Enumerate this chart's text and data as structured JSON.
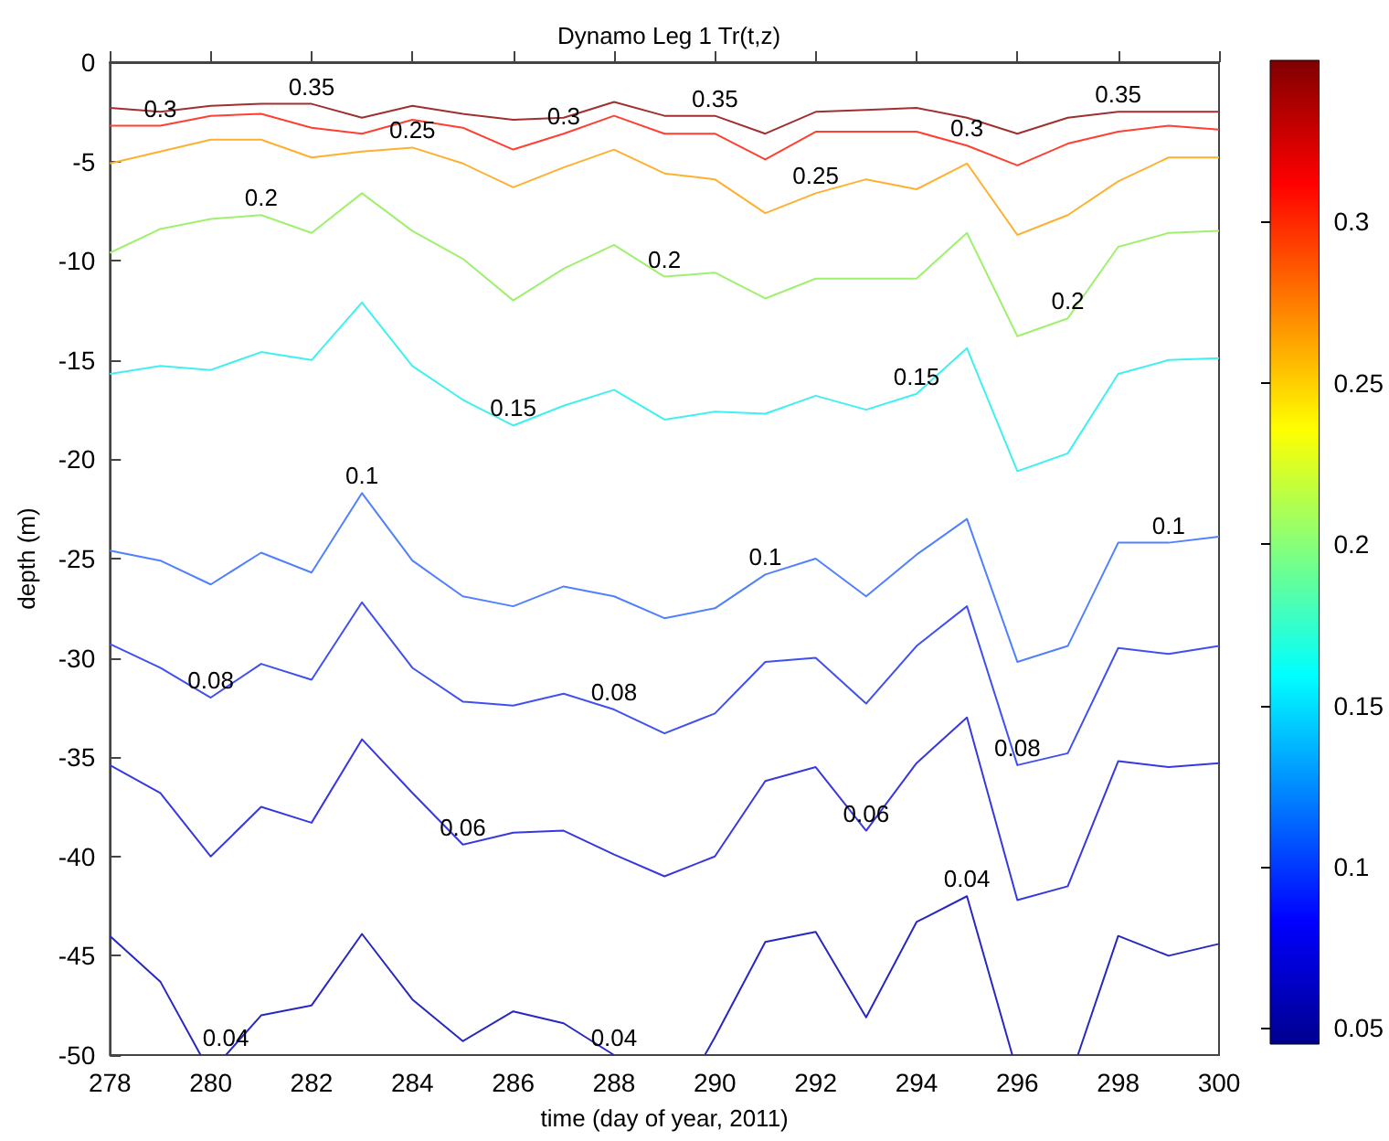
{
  "chart_data": {
    "type": "line",
    "title": "Dynamo Leg 1 Tr(t,z)",
    "xlabel": "time (day of year, 2011)",
    "ylabel": "depth (m)",
    "x": [
      278,
      279,
      280,
      281,
      282,
      283,
      284,
      285,
      286,
      287,
      288,
      289,
      290,
      291,
      292,
      293,
      294,
      295,
      296,
      297,
      298,
      299,
      300
    ],
    "xlim": [
      278,
      300
    ],
    "xticks": [
      278,
      280,
      282,
      284,
      286,
      288,
      290,
      292,
      294,
      296,
      298,
      300
    ],
    "ylim": [
      -50,
      0
    ],
    "yticks": [
      -50,
      -45,
      -40,
      -35,
      -30,
      -25,
      -20,
      -15,
      -10,
      -5,
      0
    ],
    "clim": [
      0.045,
      0.35
    ],
    "cticks": [
      0.05,
      0.1,
      0.15,
      0.2,
      0.25,
      0.3
    ],
    "series": [
      {
        "name": "0.35",
        "color": "#a03030",
        "values": [
          -2.3,
          -2.5,
          -2.2,
          -2.1,
          -2.1,
          -2.8,
          -2.2,
          -2.6,
          -2.9,
          -2.8,
          -2.0,
          -2.7,
          -2.7,
          -3.6,
          -2.5,
          -2.4,
          -2.3,
          -2.8,
          -3.6,
          -2.8,
          -2.5,
          -2.5,
          -2.5
        ]
      },
      {
        "name": "0.3",
        "color": "#ff4030",
        "values": [
          -3.2,
          -3.2,
          -2.7,
          -2.6,
          -3.3,
          -3.6,
          -2.9,
          -3.3,
          -4.4,
          -3.6,
          -2.7,
          -3.6,
          -3.6,
          -4.9,
          -3.5,
          -3.5,
          -3.5,
          -4.2,
          -5.2,
          -4.1,
          -3.5,
          -3.2,
          -3.4
        ]
      },
      {
        "name": "0.25",
        "color": "#ffb030",
        "values": [
          -5.1,
          -4.5,
          -3.9,
          -3.9,
          -4.8,
          -4.5,
          -4.3,
          -5.1,
          -6.3,
          -5.3,
          -4.4,
          -5.6,
          -5.9,
          -7.6,
          -6.6,
          -5.9,
          -6.4,
          -5.1,
          -8.7,
          -7.7,
          -6.0,
          -4.8,
          -4.8
        ]
      },
      {
        "name": "0.2",
        "color": "#a0f070",
        "values": [
          -9.6,
          -8.4,
          -7.9,
          -7.7,
          -8.6,
          -6.6,
          -8.5,
          -9.9,
          -12.0,
          -10.4,
          -9.2,
          -10.8,
          -10.6,
          -11.9,
          -10.9,
          -10.9,
          -10.9,
          -8.6,
          -13.8,
          -12.9,
          -9.3,
          -8.6,
          -8.5
        ]
      },
      {
        "name": "0.15",
        "color": "#40f0f0",
        "values": [
          -15.7,
          -15.3,
          -15.5,
          -14.6,
          -15.0,
          -12.1,
          -15.3,
          -17.0,
          -18.3,
          -17.3,
          -16.5,
          -18.0,
          -17.6,
          -17.7,
          -16.8,
          -17.5,
          -16.7,
          -14.4,
          -20.6,
          -19.7,
          -15.7,
          -15.0,
          -14.9
        ]
      },
      {
        "name": "0.1",
        "color": "#5080ff",
        "values": [
          -24.6,
          -25.1,
          -26.3,
          -24.7,
          -25.7,
          -21.7,
          -25.1,
          -26.9,
          -27.4,
          -26.4,
          -26.9,
          -28.0,
          -27.5,
          -25.8,
          -25.0,
          -26.9,
          -24.8,
          -23.0,
          -30.2,
          -29.4,
          -24.2,
          -24.2,
          -23.9
        ]
      },
      {
        "name": "0.08",
        "color": "#4050f0",
        "values": [
          -29.3,
          -30.5,
          -32.0,
          -30.3,
          -31.1,
          -27.2,
          -30.5,
          -32.2,
          -32.4,
          -31.8,
          -32.6,
          -33.8,
          -32.8,
          -30.2,
          -30.0,
          -32.3,
          -29.4,
          -27.4,
          -35.4,
          -34.8,
          -29.5,
          -29.8,
          -29.4
        ]
      },
      {
        "name": "0.06",
        "color": "#3838e0",
        "values": [
          -35.4,
          -36.8,
          -40.0,
          -37.5,
          -38.3,
          -34.1,
          -36.8,
          -39.4,
          -38.8,
          -38.7,
          -39.9,
          -41.0,
          -40.0,
          -36.2,
          -35.5,
          -38.7,
          -35.3,
          -33.0,
          -42.2,
          -41.5,
          -35.2,
          -35.5,
          -35.3
        ]
      },
      {
        "name": "0.04",
        "color": "#2828c0",
        "x": [
          278,
          279,
          279.8,
          280,
          280.3,
          281,
          282,
          283,
          284,
          285,
          286,
          287,
          288,
          289,
          289.8,
          290,
          291,
          292,
          293,
          294,
          295,
          295.9,
          296.5,
          297.2,
          298,
          299,
          300
        ],
        "values": [
          -44.0,
          -46.3,
          -50,
          null,
          -50,
          -48.0,
          -47.5,
          -43.9,
          -47.2,
          -49.3,
          -47.8,
          -48.4,
          -50,
          null,
          -50,
          -49.1,
          -44.3,
          -43.8,
          -48.1,
          -43.3,
          -42.0,
          -50,
          null,
          -50,
          -44.0,
          -45.0,
          -44.4
        ]
      }
    ]
  }
}
